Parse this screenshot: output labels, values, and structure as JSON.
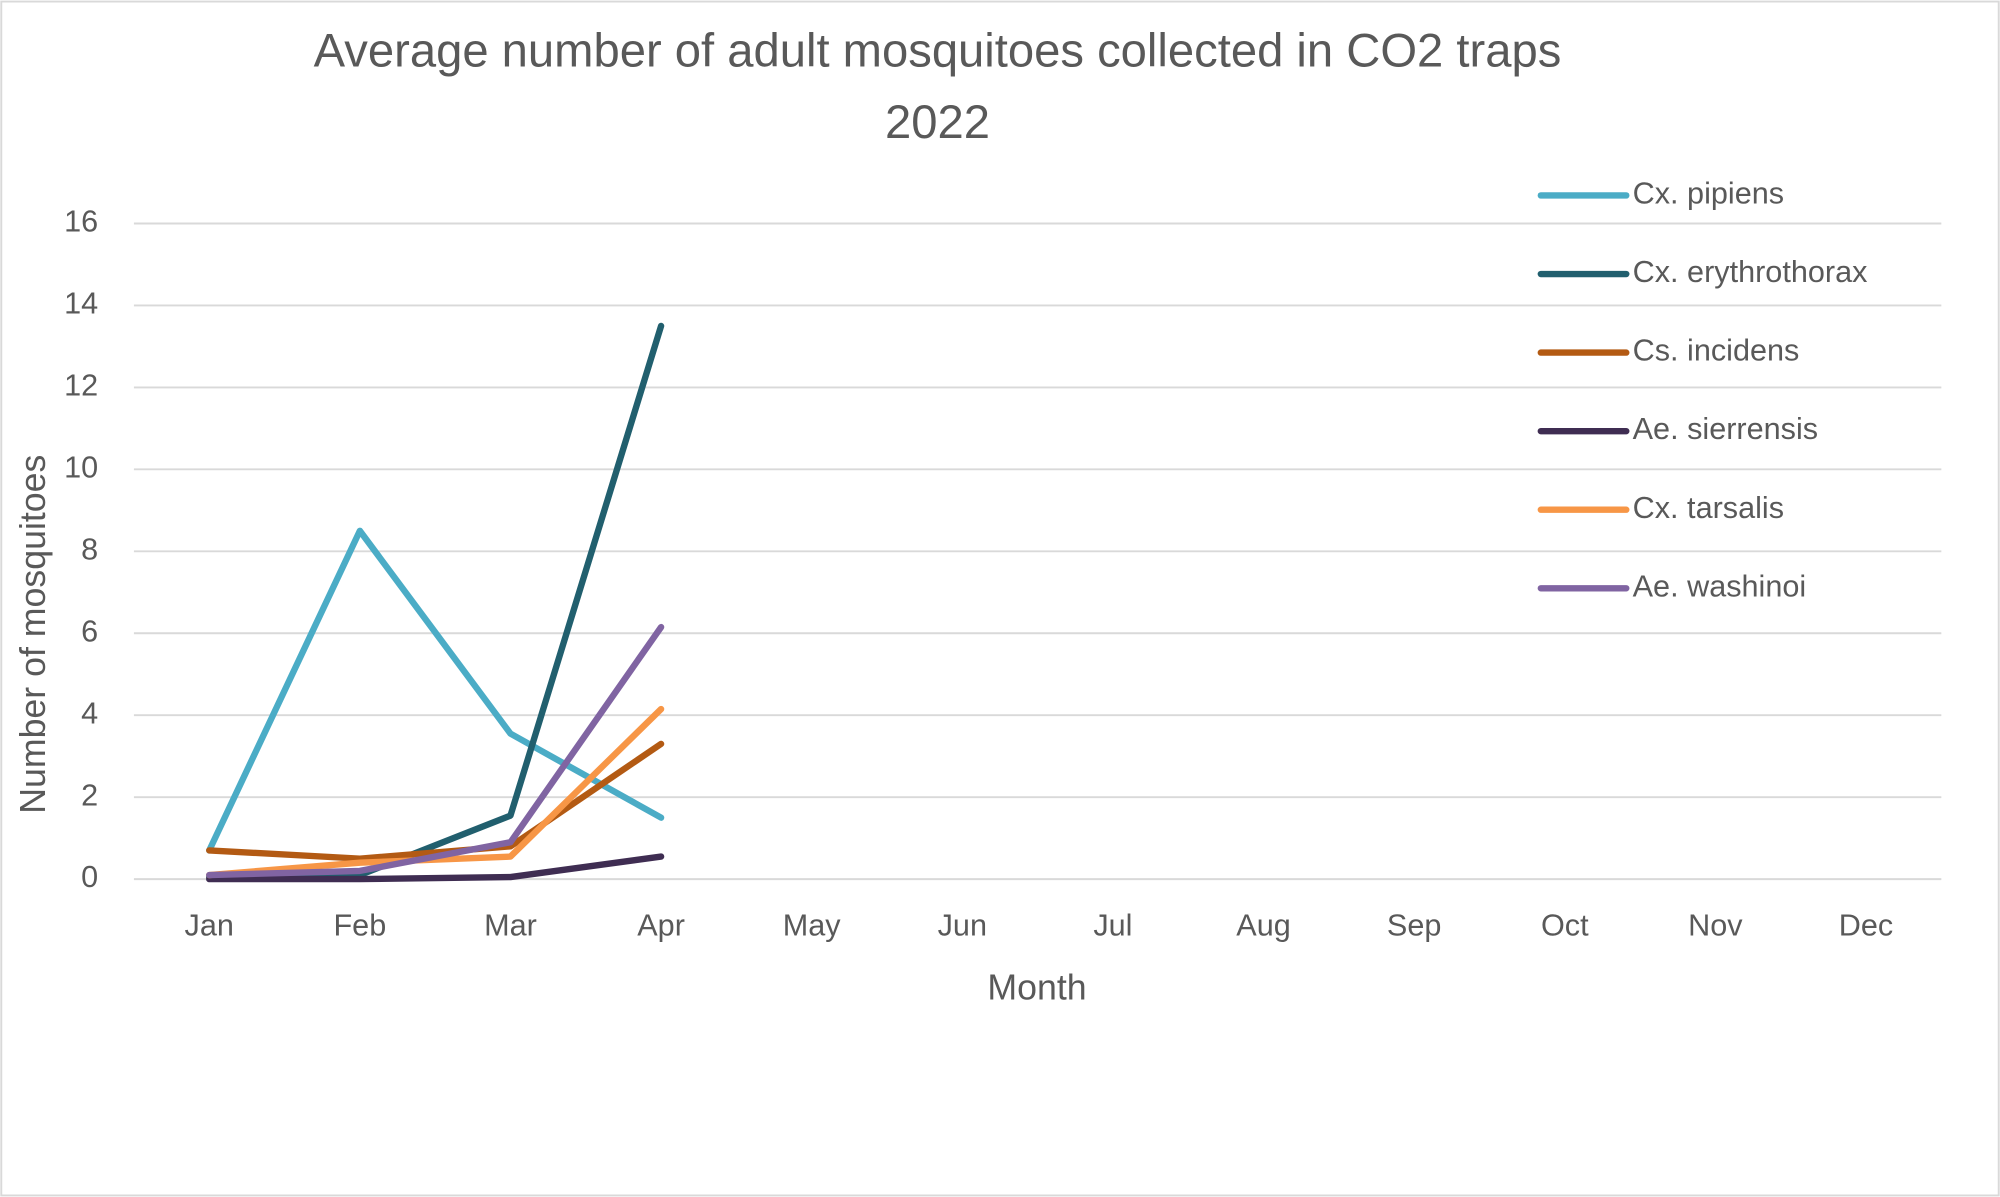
{
  "chart_data": {
    "type": "line",
    "title": "Average number of adult mosquitoes collected in CO2 traps",
    "subtitle": "2022",
    "x_label": "Month",
    "y_label": "Number of mosquitoes",
    "categories": [
      "Jan",
      "Feb",
      "Mar",
      "Apr",
      "May",
      "Jun",
      "Jul",
      "Aug",
      "Sep",
      "Oct",
      "Nov",
      "Dec"
    ],
    "series": [
      {
        "name": "Cx. pipiens",
        "color": "#4bacc6",
        "values": [
          0.7,
          8.5,
          3.55,
          1.5,
          null,
          null,
          null,
          null,
          null,
          null,
          null,
          null
        ]
      },
      {
        "name": "Cx. erythrothorax",
        "color": "#215f6e",
        "values": [
          0.05,
          0.1,
          1.55,
          13.5,
          null,
          null,
          null,
          null,
          null,
          null,
          null,
          null
        ]
      },
      {
        "name": "Cs. incidens",
        "color": "#b35a13",
        "values": [
          0.7,
          0.5,
          0.8,
          3.3,
          null,
          null,
          null,
          null,
          null,
          null,
          null,
          null
        ]
      },
      {
        "name": "Ae. sierrensis",
        "color": "#3f2d52",
        "values": [
          0,
          0,
          0.05,
          0.55,
          null,
          null,
          null,
          null,
          null,
          null,
          null,
          null
        ]
      },
      {
        "name": "Cx. tarsalis",
        "color": "#f79646",
        "values": [
          0.1,
          0.4,
          0.55,
          4.15,
          null,
          null,
          null,
          null,
          null,
          null,
          null,
          null
        ]
      },
      {
        "name": "Ae. washinoi",
        "color": "#8064a2",
        "values": [
          0.1,
          0.2,
          0.9,
          6.15,
          null,
          null,
          null,
          null,
          null,
          null,
          null,
          null
        ]
      }
    ],
    "ylim": [
      0,
      16
    ],
    "yticks": [
      0,
      2,
      4,
      6,
      8,
      10,
      12,
      14,
      16
    ],
    "grid": true,
    "legend": "right"
  }
}
